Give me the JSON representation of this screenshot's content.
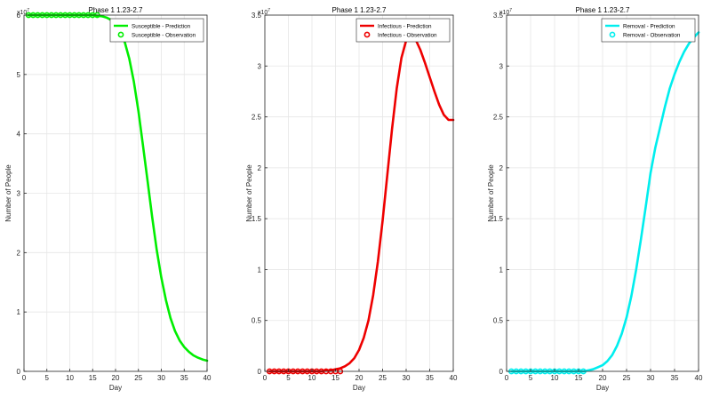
{
  "chart_data": [
    {
      "type": "line",
      "title": "Phase 1 1.23-2.7",
      "xlabel": "Day",
      "ylabel": "Number of People",
      "xlim": [
        0,
        40
      ],
      "ylim": [
        0,
        6
      ],
      "y_exponent_label": "x10",
      "y_exponent_power": "7",
      "xticks": [
        "0",
        "5",
        "10",
        "15",
        "20",
        "25",
        "30",
        "35",
        "40"
      ],
      "yticks": [
        "0",
        "1",
        "2",
        "3",
        "4",
        "5",
        "6"
      ],
      "grid": true,
      "legend_position": "top-right",
      "color": "#00ee00",
      "series": [
        {
          "name": "Susceptible - Prediction",
          "style": "line",
          "x": [
            1,
            2,
            3,
            4,
            5,
            6,
            7,
            8,
            9,
            10,
            11,
            12,
            13,
            14,
            15,
            16,
            17,
            18,
            19,
            20,
            21,
            22,
            23,
            24,
            25,
            26,
            27,
            28,
            29,
            30,
            31,
            32,
            33,
            34,
            35,
            36,
            37,
            38,
            39,
            40
          ],
          "values": [
            6.0,
            6.0,
            6.0,
            6.0,
            6.0,
            6.0,
            6.0,
            6.0,
            6.0,
            6.0,
            6.0,
            6.0,
            6.0,
            6.0,
            6.0,
            5.99,
            5.98,
            5.96,
            5.92,
            5.85,
            5.74,
            5.55,
            5.27,
            4.88,
            4.38,
            3.8,
            3.2,
            2.6,
            2.05,
            1.58,
            1.2,
            0.9,
            0.68,
            0.52,
            0.41,
            0.33,
            0.27,
            0.23,
            0.2,
            0.18
          ]
        },
        {
          "name": "Susceptible - Observation",
          "style": "marker",
          "x": [
            1,
            2,
            3,
            4,
            5,
            6,
            7,
            8,
            9,
            10,
            11,
            12,
            13,
            14,
            15,
            16
          ],
          "values": [
            6.0,
            6.0,
            6.0,
            6.0,
            6.0,
            6.0,
            6.0,
            6.0,
            6.0,
            6.0,
            6.0,
            6.0,
            6.0,
            6.0,
            6.0,
            6.0
          ]
        }
      ]
    },
    {
      "type": "line",
      "title": "Phase 1 1.23-2.7",
      "xlabel": "Day",
      "ylabel": "Number of People",
      "xlim": [
        0,
        40
      ],
      "ylim": [
        0,
        3.5
      ],
      "y_exponent_label": "x10",
      "y_exponent_power": "7",
      "xticks": [
        "0",
        "5",
        "10",
        "15",
        "20",
        "25",
        "30",
        "35",
        "40"
      ],
      "yticks": [
        "0",
        "0.5",
        "1",
        "1.5",
        "2",
        "2.5",
        "3",
        "3.5"
      ],
      "grid": true,
      "legend_position": "top-right",
      "color": "#ee0000",
      "series": [
        {
          "name": "Infectious - Prediction",
          "style": "line",
          "x": [
            1,
            2,
            3,
            4,
            5,
            6,
            7,
            8,
            9,
            10,
            11,
            12,
            13,
            14,
            15,
            16,
            17,
            18,
            19,
            20,
            21,
            22,
            23,
            24,
            25,
            26,
            27,
            28,
            29,
            30,
            31,
            32,
            33,
            34,
            35,
            36,
            37,
            38,
            39,
            40
          ],
          "values": [
            0,
            0,
            0,
            0,
            0,
            0,
            0,
            0,
            0,
            0,
            0,
            0,
            0.01,
            0.01,
            0.02,
            0.03,
            0.05,
            0.08,
            0.13,
            0.21,
            0.33,
            0.5,
            0.75,
            1.08,
            1.48,
            1.93,
            2.38,
            2.78,
            3.08,
            3.25,
            3.3,
            3.26,
            3.16,
            3.03,
            2.89,
            2.75,
            2.62,
            2.52,
            2.47,
            2.47
          ]
        },
        {
          "name": "Infectious - Observation",
          "style": "marker",
          "x": [
            1,
            2,
            3,
            4,
            5,
            6,
            7,
            8,
            9,
            10,
            11,
            12,
            13,
            14,
            15,
            16
          ],
          "values": [
            0,
            0,
            0,
            0,
            0,
            0,
            0,
            0,
            0,
            0,
            0,
            0,
            0,
            0,
            0,
            0
          ]
        }
      ]
    },
    {
      "type": "line",
      "title": "Phase 1 1.23-2.7",
      "xlabel": "Day",
      "ylabel": "Number of People",
      "xlim": [
        0,
        40
      ],
      "ylim": [
        0,
        3.5
      ],
      "y_exponent_label": "x10",
      "y_exponent_power": "7",
      "xticks": [
        "0",
        "5",
        "10",
        "15",
        "20",
        "25",
        "30",
        "35",
        "40"
      ],
      "yticks": [
        "0",
        "0.5",
        "1",
        "1.5",
        "2",
        "2.5",
        "3",
        "3.5"
      ],
      "grid": true,
      "legend_position": "top-right",
      "color": "#00eeee",
      "series": [
        {
          "name": "Removal - Prediction",
          "style": "line",
          "x": [
            1,
            2,
            3,
            4,
            5,
            6,
            7,
            8,
            9,
            10,
            11,
            12,
            13,
            14,
            15,
            16,
            17,
            18,
            19,
            20,
            21,
            22,
            23,
            24,
            25,
            26,
            27,
            28,
            29,
            30,
            31,
            32,
            33,
            34,
            35,
            36,
            37,
            38,
            39,
            40
          ],
          "values": [
            0,
            0,
            0,
            0,
            0,
            0,
            0,
            0,
            0,
            0,
            0,
            0,
            0,
            0,
            0,
            0,
            0.01,
            0.02,
            0.04,
            0.06,
            0.1,
            0.16,
            0.25,
            0.37,
            0.53,
            0.74,
            1.0,
            1.3,
            1.62,
            1.95,
            2.2,
            2.4,
            2.6,
            2.78,
            2.92,
            3.04,
            3.14,
            3.22,
            3.28,
            3.33
          ]
        },
        {
          "name": "Removal - Observation",
          "style": "marker",
          "x": [
            1,
            2,
            3,
            4,
            5,
            6,
            7,
            8,
            9,
            10,
            11,
            12,
            13,
            14,
            15,
            16
          ],
          "values": [
            0,
            0,
            0,
            0,
            0,
            0,
            0,
            0,
            0,
            0,
            0,
            0,
            0,
            0,
            0,
            0
          ]
        }
      ]
    }
  ]
}
